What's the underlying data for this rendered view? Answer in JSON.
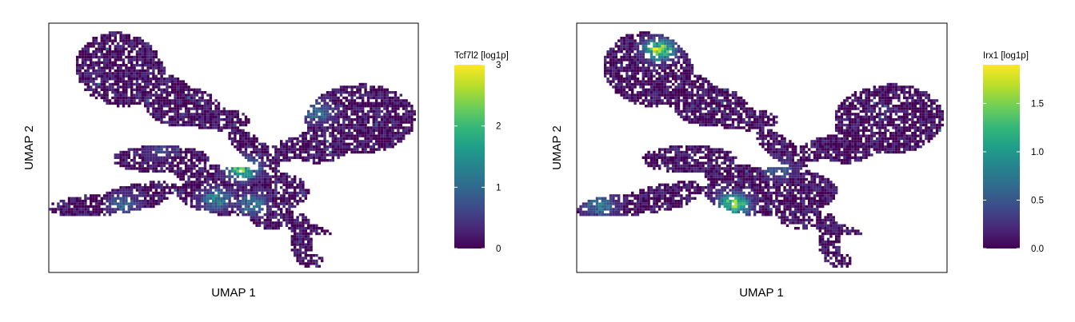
{
  "chart_data": [
    {
      "type": "heatmap",
      "xlabel": "UMAP 1",
      "ylabel": "UMAP 2",
      "colorbar": {
        "title": "Tcf7l2 [log1p]",
        "colormap": "viridis",
        "range": [
          0,
          3
        ],
        "ticks": [
          "0",
          "1",
          "2",
          "3"
        ]
      },
      "hotspots": [
        [
          0.52,
          0.58,
          0.85
        ],
        [
          0.45,
          0.7,
          0.55
        ],
        [
          0.2,
          0.72,
          0.4
        ],
        [
          0.55,
          0.72,
          0.45
        ],
        [
          0.72,
          0.35,
          0.45
        ],
        [
          0.3,
          0.5,
          0.25
        ]
      ]
    },
    {
      "type": "heatmap",
      "xlabel": "UMAP 1",
      "ylabel": "UMAP 2",
      "colorbar": {
        "title": "Irx1 [log1p]",
        "colormap": "viridis",
        "range": [
          0,
          1.9
        ],
        "ticks": [
          "0.0",
          "0.5",
          "1.0",
          "1.5"
        ]
      },
      "hotspots": [
        [
          0.42,
          0.72,
          0.9
        ],
        [
          0.06,
          0.73,
          0.5
        ],
        [
          0.22,
          0.1,
          0.95
        ],
        [
          0.54,
          0.58,
          0.35
        ]
      ]
    }
  ],
  "colors": {
    "viridis": [
      "#440154",
      "#482878",
      "#3e4a89",
      "#31688e",
      "#26828e",
      "#1f9e89",
      "#35b779",
      "#6ece58",
      "#b5de2b",
      "#fde725"
    ]
  }
}
